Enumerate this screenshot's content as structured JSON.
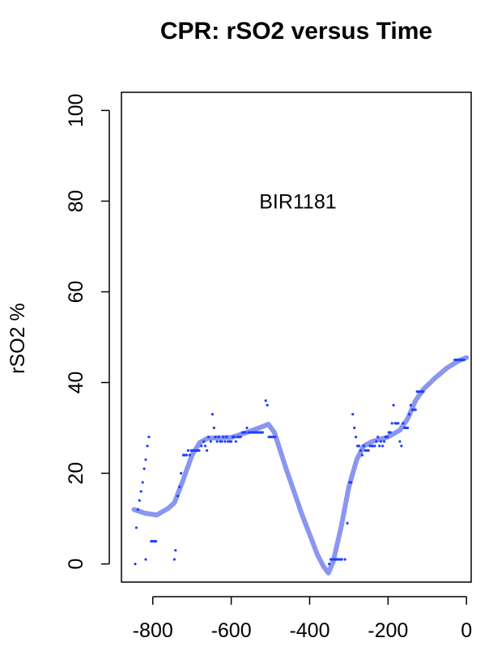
{
  "chart_data": {
    "type": "scatter",
    "title": "CPR: rSO2 versus Time",
    "xlabel": "",
    "ylabel": "rSO2 %",
    "xlim": [
      -880,
      12
    ],
    "ylim": [
      -4,
      104
    ],
    "xticks": [
      -800,
      -600,
      -400,
      -200,
      0
    ],
    "yticks": [
      0,
      20,
      40,
      60,
      80,
      100
    ],
    "annotation": {
      "text": "BIR1181",
      "x": -430,
      "y": 80
    },
    "colors": {
      "points": "#1f3fff",
      "smooth": "#8a96f0"
    },
    "series": [
      {
        "kind": "points",
        "points": [
          [
            -845,
            0
          ],
          [
            -842,
            8
          ],
          [
            -838,
            12
          ],
          [
            -834,
            14
          ],
          [
            -830,
            16
          ],
          [
            -826,
            18
          ],
          [
            -822,
            21
          ],
          [
            -818,
            23
          ],
          [
            -814,
            26
          ],
          [
            -810,
            28
          ],
          [
            -818,
            1
          ],
          [
            -804,
            5
          ],
          [
            -800,
            5
          ],
          [
            -796,
            5
          ],
          [
            -792,
            5
          ],
          [
            -745,
            1
          ],
          [
            -742,
            3
          ],
          [
            -736,
            15
          ],
          [
            -732,
            17
          ],
          [
            -728,
            20
          ],
          [
            -722,
            24
          ],
          [
            -718,
            24
          ],
          [
            -714,
            24
          ],
          [
            -710,
            25
          ],
          [
            -706,
            24
          ],
          [
            -702,
            25
          ],
          [
            -698,
            25
          ],
          [
            -694,
            25
          ],
          [
            -690,
            25
          ],
          [
            -686,
            25
          ],
          [
            -682,
            25
          ],
          [
            -676,
            26
          ],
          [
            -670,
            27
          ],
          [
            -666,
            26
          ],
          [
            -662,
            25
          ],
          [
            -658,
            28
          ],
          [
            -652,
            27
          ],
          [
            -648,
            33
          ],
          [
            -644,
            30
          ],
          [
            -640,
            28
          ],
          [
            -636,
            27
          ],
          [
            -632,
            28
          ],
          [
            -628,
            27
          ],
          [
            -624,
            27
          ],
          [
            -620,
            28
          ],
          [
            -616,
            27
          ],
          [
            -612,
            28
          ],
          [
            -608,
            27
          ],
          [
            -604,
            27
          ],
          [
            -600,
            27
          ],
          [
            -596,
            28
          ],
          [
            -592,
            28
          ],
          [
            -588,
            27
          ],
          [
            -584,
            28
          ],
          [
            -580,
            28
          ],
          [
            -576,
            28
          ],
          [
            -572,
            29
          ],
          [
            -568,
            29
          ],
          [
            -564,
            29
          ],
          [
            -560,
            30
          ],
          [
            -556,
            29
          ],
          [
            -552,
            29
          ],
          [
            -548,
            29
          ],
          [
            -544,
            29
          ],
          [
            -540,
            29
          ],
          [
            -536,
            29
          ],
          [
            -532,
            29
          ],
          [
            -528,
            29
          ],
          [
            -524,
            29
          ],
          [
            -520,
            29
          ],
          [
            -512,
            36
          ],
          [
            -508,
            35
          ],
          [
            -504,
            28
          ],
          [
            -500,
            28
          ],
          [
            -496,
            28
          ],
          [
            -492,
            28
          ],
          [
            -488,
            28
          ],
          [
            -350,
            0
          ],
          [
            -346,
            1
          ],
          [
            -342,
            1
          ],
          [
            -338,
            1
          ],
          [
            -334,
            1
          ],
          [
            -330,
            1
          ],
          [
            -326,
            1
          ],
          [
            -322,
            1
          ],
          [
            -318,
            1
          ],
          [
            -310,
            1
          ],
          [
            -304,
            9
          ],
          [
            -298,
            18
          ],
          [
            -294,
            18
          ],
          [
            -290,
            33
          ],
          [
            -286,
            30
          ],
          [
            -282,
            28
          ],
          [
            -278,
            26
          ],
          [
            -274,
            26
          ],
          [
            -270,
            25
          ],
          [
            -266,
            24
          ],
          [
            -262,
            26
          ],
          [
            -258,
            25
          ],
          [
            -254,
            25
          ],
          [
            -250,
            25
          ],
          [
            -246,
            26
          ],
          [
            -242,
            26
          ],
          [
            -238,
            26
          ],
          [
            -234,
            26
          ],
          [
            -230,
            27
          ],
          [
            -226,
            28
          ],
          [
            -222,
            26
          ],
          [
            -218,
            27
          ],
          [
            -214,
            26
          ],
          [
            -210,
            27
          ],
          [
            -206,
            28
          ],
          [
            -202,
            28
          ],
          [
            -198,
            29
          ],
          [
            -194,
            29
          ],
          [
            -190,
            31
          ],
          [
            -186,
            35
          ],
          [
            -182,
            31
          ],
          [
            -178,
            31
          ],
          [
            -174,
            31
          ],
          [
            -170,
            27
          ],
          [
            -166,
            26
          ],
          [
            -162,
            31
          ],
          [
            -158,
            30
          ],
          [
            -154,
            30
          ],
          [
            -150,
            30
          ],
          [
            -146,
            33
          ],
          [
            -142,
            35
          ],
          [
            -138,
            34
          ],
          [
            -134,
            34
          ],
          [
            -130,
            34
          ],
          [
            -126,
            38
          ],
          [
            -122,
            38
          ],
          [
            -118,
            38
          ],
          [
            -114,
            38
          ],
          [
            -110,
            38
          ],
          [
            -30,
            45
          ],
          [
            -26,
            45
          ],
          [
            -22,
            45
          ],
          [
            -18,
            45
          ],
          [
            -14,
            45
          ],
          [
            -10,
            45
          ],
          [
            -6,
            45
          ]
        ]
      },
      {
        "kind": "smooth",
        "points": [
          [
            -848,
            12
          ],
          [
            -820,
            11.2
          ],
          [
            -790,
            10.8
          ],
          [
            -760,
            12.3
          ],
          [
            -745,
            13.5
          ],
          [
            -725,
            18
          ],
          [
            -700,
            24
          ],
          [
            -680,
            26.8
          ],
          [
            -660,
            27.7
          ],
          [
            -640,
            27.8
          ],
          [
            -600,
            27.9
          ],
          [
            -560,
            29
          ],
          [
            -520,
            30.3
          ],
          [
            -505,
            30.8
          ],
          [
            -490,
            29
          ],
          [
            -460,
            21
          ],
          [
            -420,
            11
          ],
          [
            -380,
            2
          ],
          [
            -365,
            -0.5
          ],
          [
            -352,
            -2
          ],
          [
            -340,
            0.5
          ],
          [
            -320,
            8
          ],
          [
            -300,
            17
          ],
          [
            -280,
            23
          ],
          [
            -262,
            26
          ],
          [
            -240,
            27
          ],
          [
            -200,
            28
          ],
          [
            -170,
            29.5
          ],
          [
            -150,
            32
          ],
          [
            -130,
            36
          ],
          [
            -110,
            38.5
          ],
          [
            -80,
            41
          ],
          [
            -50,
            43.2
          ],
          [
            -20,
            44.8
          ],
          [
            0,
            45.5
          ]
        ]
      }
    ]
  }
}
